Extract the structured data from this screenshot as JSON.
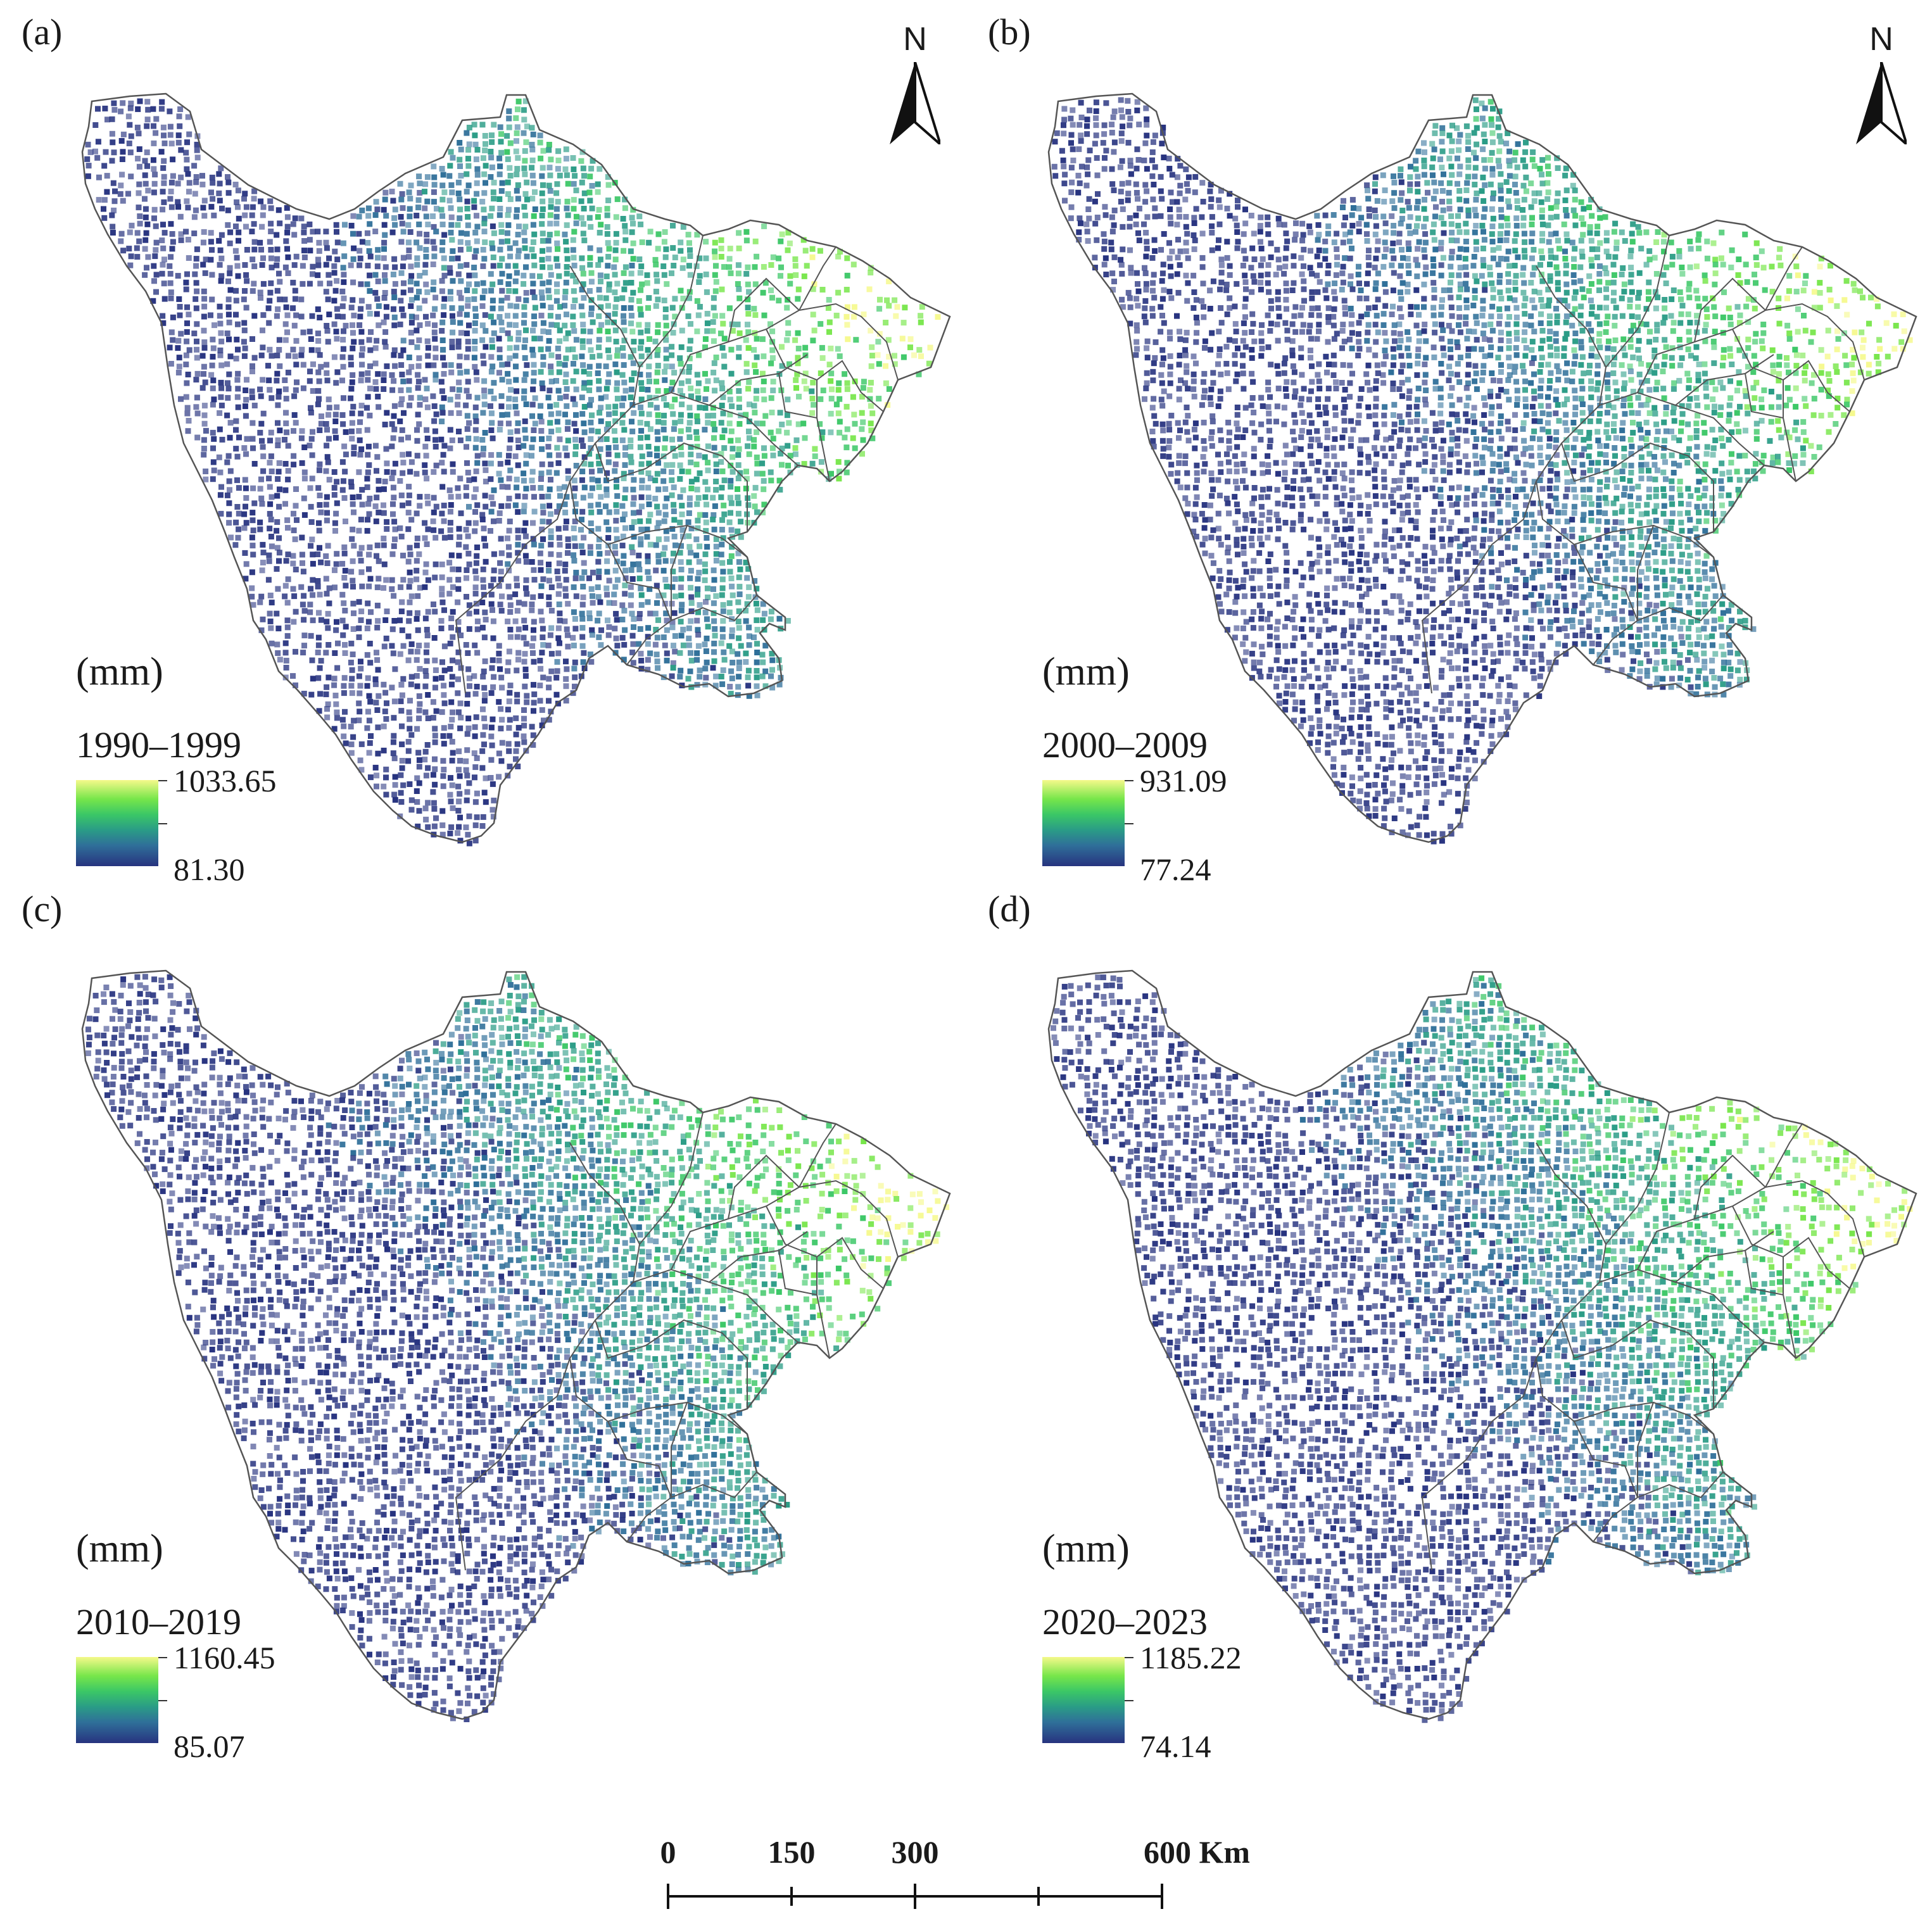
{
  "panels": [
    {
      "label": "(a)",
      "unit": "(mm)",
      "period": "1990–1999",
      "legend_max": "1033.65",
      "legend_min": "81.30",
      "north": "N"
    },
    {
      "label": "(b)",
      "unit": "(mm)",
      "period": "2000–2009",
      "legend_max": "931.09",
      "legend_min": "77.24",
      "north": "N"
    },
    {
      "label": "(c)",
      "unit": "(mm)",
      "period": "2010–2019",
      "legend_max": "1160.45",
      "legend_min": "85.07"
    },
    {
      "label": "(d)",
      "unit": "(mm)",
      "period": "2020–2023",
      "legend_max": "1185.22",
      "legend_min": "74.14"
    }
  ],
  "scale_bar": {
    "labels": [
      "0",
      "150",
      "300",
      "600 Km"
    ],
    "values": [
      0,
      150,
      300,
      600
    ]
  },
  "colors": {
    "ramp": [
      "#f5f98a",
      "#77e64a",
      "#3bc766",
      "#2a9c86",
      "#2f6f99",
      "#27337f"
    ],
    "boundary": "#555555"
  }
}
